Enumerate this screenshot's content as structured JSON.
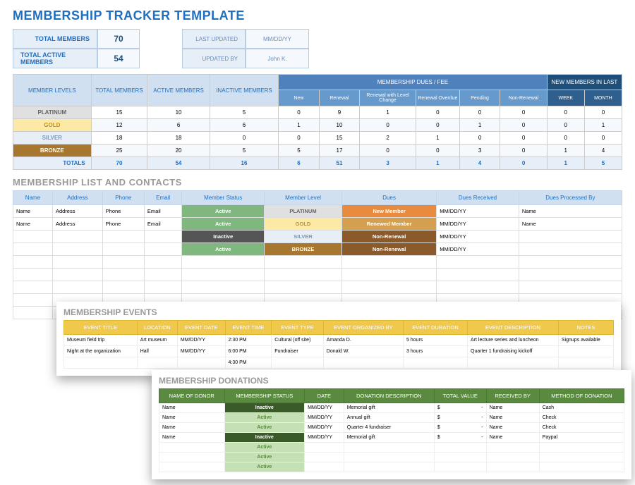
{
  "title": "MEMBERSHIP TRACKER TEMPLATE",
  "summary": {
    "total_members_label": "TOTAL MEMBERS",
    "total_members": "70",
    "total_active_label": "TOTAL ACTIVE MEMBERS",
    "total_active": "54",
    "last_updated_label": "LAST UPDATED",
    "last_updated": "MM/DD/YY",
    "updated_by_label": "UPDATED BY",
    "updated_by": "John K."
  },
  "levels_table": {
    "headers": {
      "member_levels": "MEMBER LEVELS",
      "total": "TOTAL MEMBERS",
      "active": "ACTIVE MEMBERS",
      "inactive": "INACTIVE MEMBERS",
      "dues_group": "MEMBERSHIP DUES / FEE",
      "new_group": "NEW MEMBERS IN LAST",
      "sub": [
        "New",
        "Renewal",
        "Renewal with Level Change",
        "Renewal Overdue",
        "Pending",
        "Non-Renewal",
        "WEEK",
        "MONTH"
      ]
    },
    "rows": [
      {
        "label": "PLATINUM",
        "cls": "platinum",
        "total": "15",
        "active": "10",
        "inactive": "5",
        "new": "0",
        "renewal": "9",
        "rlc": "1",
        "overdue": "0",
        "pending": "0",
        "nonr": "0",
        "week": "0",
        "month": "0"
      },
      {
        "label": "GOLD",
        "cls": "gold",
        "total": "12",
        "active": "6",
        "inactive": "6",
        "new": "1",
        "renewal": "10",
        "rlc": "0",
        "overdue": "0",
        "pending": "1",
        "nonr": "0",
        "week": "0",
        "month": "1"
      },
      {
        "label": "SILVER",
        "cls": "silver",
        "total": "18",
        "active": "18",
        "inactive": "0",
        "new": "0",
        "renewal": "15",
        "rlc": "2",
        "overdue": "1",
        "pending": "0",
        "nonr": "0",
        "week": "0",
        "month": "0"
      },
      {
        "label": "BRONZE",
        "cls": "bronze",
        "total": "25",
        "active": "20",
        "inactive": "5",
        "new": "5",
        "renewal": "17",
        "rlc": "0",
        "overdue": "0",
        "pending": "3",
        "nonr": "0",
        "week": "1",
        "month": "4"
      }
    ],
    "totals": {
      "label": "TOTALS",
      "total": "70",
      "active": "54",
      "inactive": "16",
      "new": "6",
      "renewal": "51",
      "rlc": "3",
      "overdue": "1",
      "pending": "4",
      "nonr": "0",
      "week": "1",
      "month": "5"
    }
  },
  "contacts": {
    "title": "MEMBERSHIP LIST AND CONTACTS",
    "headers": [
      "Name",
      "Address",
      "Phone",
      "Email",
      "Member Status",
      "Member Level",
      "Dues",
      "Dues Received",
      "Dues Processed By"
    ],
    "rows": [
      {
        "name": "Name",
        "address": "Address",
        "phone": "Phone",
        "email": "Email",
        "status": "Active",
        "level": "PLATINUM",
        "lvlcls": "platinum",
        "dues": "New Member",
        "duescls": "new",
        "recv": "MM/DD/YY",
        "proc": "Name"
      },
      {
        "name": "Name",
        "address": "Address",
        "phone": "Phone",
        "email": "Email",
        "status": "Active",
        "level": "GOLD",
        "lvlcls": "gold",
        "dues": "Renewed Member",
        "duescls": "renewed",
        "recv": "MM/DD/YY",
        "proc": "Name"
      },
      {
        "name": "",
        "address": "",
        "phone": "",
        "email": "",
        "status": "Inactive",
        "level": "SILVER",
        "lvlcls": "silver",
        "dues": "Non-Renewal",
        "duescls": "nonrenewal",
        "recv": "MM/DD/YY",
        "proc": ""
      },
      {
        "name": "",
        "address": "",
        "phone": "",
        "email": "",
        "status": "Active",
        "level": "BRONZE",
        "lvlcls": "bronze",
        "dues": "Non-Renewal",
        "duescls": "nonrenewal",
        "recv": "MM/DD/YY",
        "proc": ""
      }
    ],
    "empty_rows": 5
  },
  "events": {
    "title": "MEMBERSHIP EVENTS",
    "headers": [
      "EVENT TITLE",
      "LOCATION",
      "EVENT DATE",
      "EVENT TIME",
      "EVENT TYPE",
      "EVENT ORGANIZED BY",
      "EVENT DURATION",
      "EVENT DESCRIPTION",
      "NOTES"
    ],
    "rows": [
      {
        "title": "Museum field trip",
        "loc": "Art museum",
        "date": "MM/DD/YY",
        "time": "2:30 PM",
        "type": "Cultural (off site)",
        "org": "Amanda D.",
        "dur": "5 hours",
        "desc": "Art lecture series and luncheon",
        "notes": "Signups available"
      },
      {
        "title": "Night at the organization",
        "loc": "Hall",
        "date": "MM/DD/YY",
        "time": "6:00 PM",
        "type": "Fundraiser",
        "org": "Donald W.",
        "dur": "3 hours",
        "desc": "Quarter 1 fundraising kickoff",
        "notes": ""
      },
      {
        "title": "",
        "loc": "",
        "date": "",
        "time": "4:30 PM",
        "type": "",
        "org": "",
        "dur": "",
        "desc": "",
        "notes": ""
      }
    ]
  },
  "donations": {
    "title": "MEMBERSHIP DONATIONS",
    "headers": [
      "NAME OF DONOR",
      "MEMBERSHIP STATUS",
      "DATE",
      "DONATION DESCRIPTION",
      "TOTAL VALUE",
      "RECEIVED BY",
      "METHOD OF DONATION"
    ],
    "rows": [
      {
        "name": "Name",
        "status": "Inactive",
        "date": "MM/DD/YY",
        "desc": "Memorial gift",
        "val": "$",
        "valr": "-",
        "recv": "Name",
        "method": "Cash"
      },
      {
        "name": "Name",
        "status": "Active",
        "date": "MM/DD/YY",
        "desc": "Annual gift",
        "val": "$",
        "valr": "-",
        "recv": "Name",
        "method": "Check"
      },
      {
        "name": "Name",
        "status": "Active",
        "date": "MM/DD/YY",
        "desc": "Quarter 4 fundraiser",
        "val": "$",
        "valr": "-",
        "recv": "Name",
        "method": "Check"
      },
      {
        "name": "Name",
        "status": "Inactive",
        "date": "MM/DD/YY",
        "desc": "Memorial gift",
        "val": "$",
        "valr": "-",
        "recv": "Name",
        "method": "Paypal"
      },
      {
        "name": "",
        "status": "Active",
        "date": "",
        "desc": "",
        "val": "",
        "valr": "",
        "recv": "",
        "method": ""
      },
      {
        "name": "",
        "status": "Active",
        "date": "",
        "desc": "",
        "val": "",
        "valr": "",
        "recv": "",
        "method": ""
      },
      {
        "name": "",
        "status": "Active",
        "date": "",
        "desc": "",
        "val": "",
        "valr": "",
        "recv": "",
        "method": ""
      }
    ]
  },
  "colors": {
    "title": "#1f6fc0",
    "header_light": "#d0e0f0",
    "dues_group": "#4f81bd",
    "new_group": "#1f4e79",
    "events_header": "#f0c94c",
    "donations_header": "#5a8a3f"
  }
}
